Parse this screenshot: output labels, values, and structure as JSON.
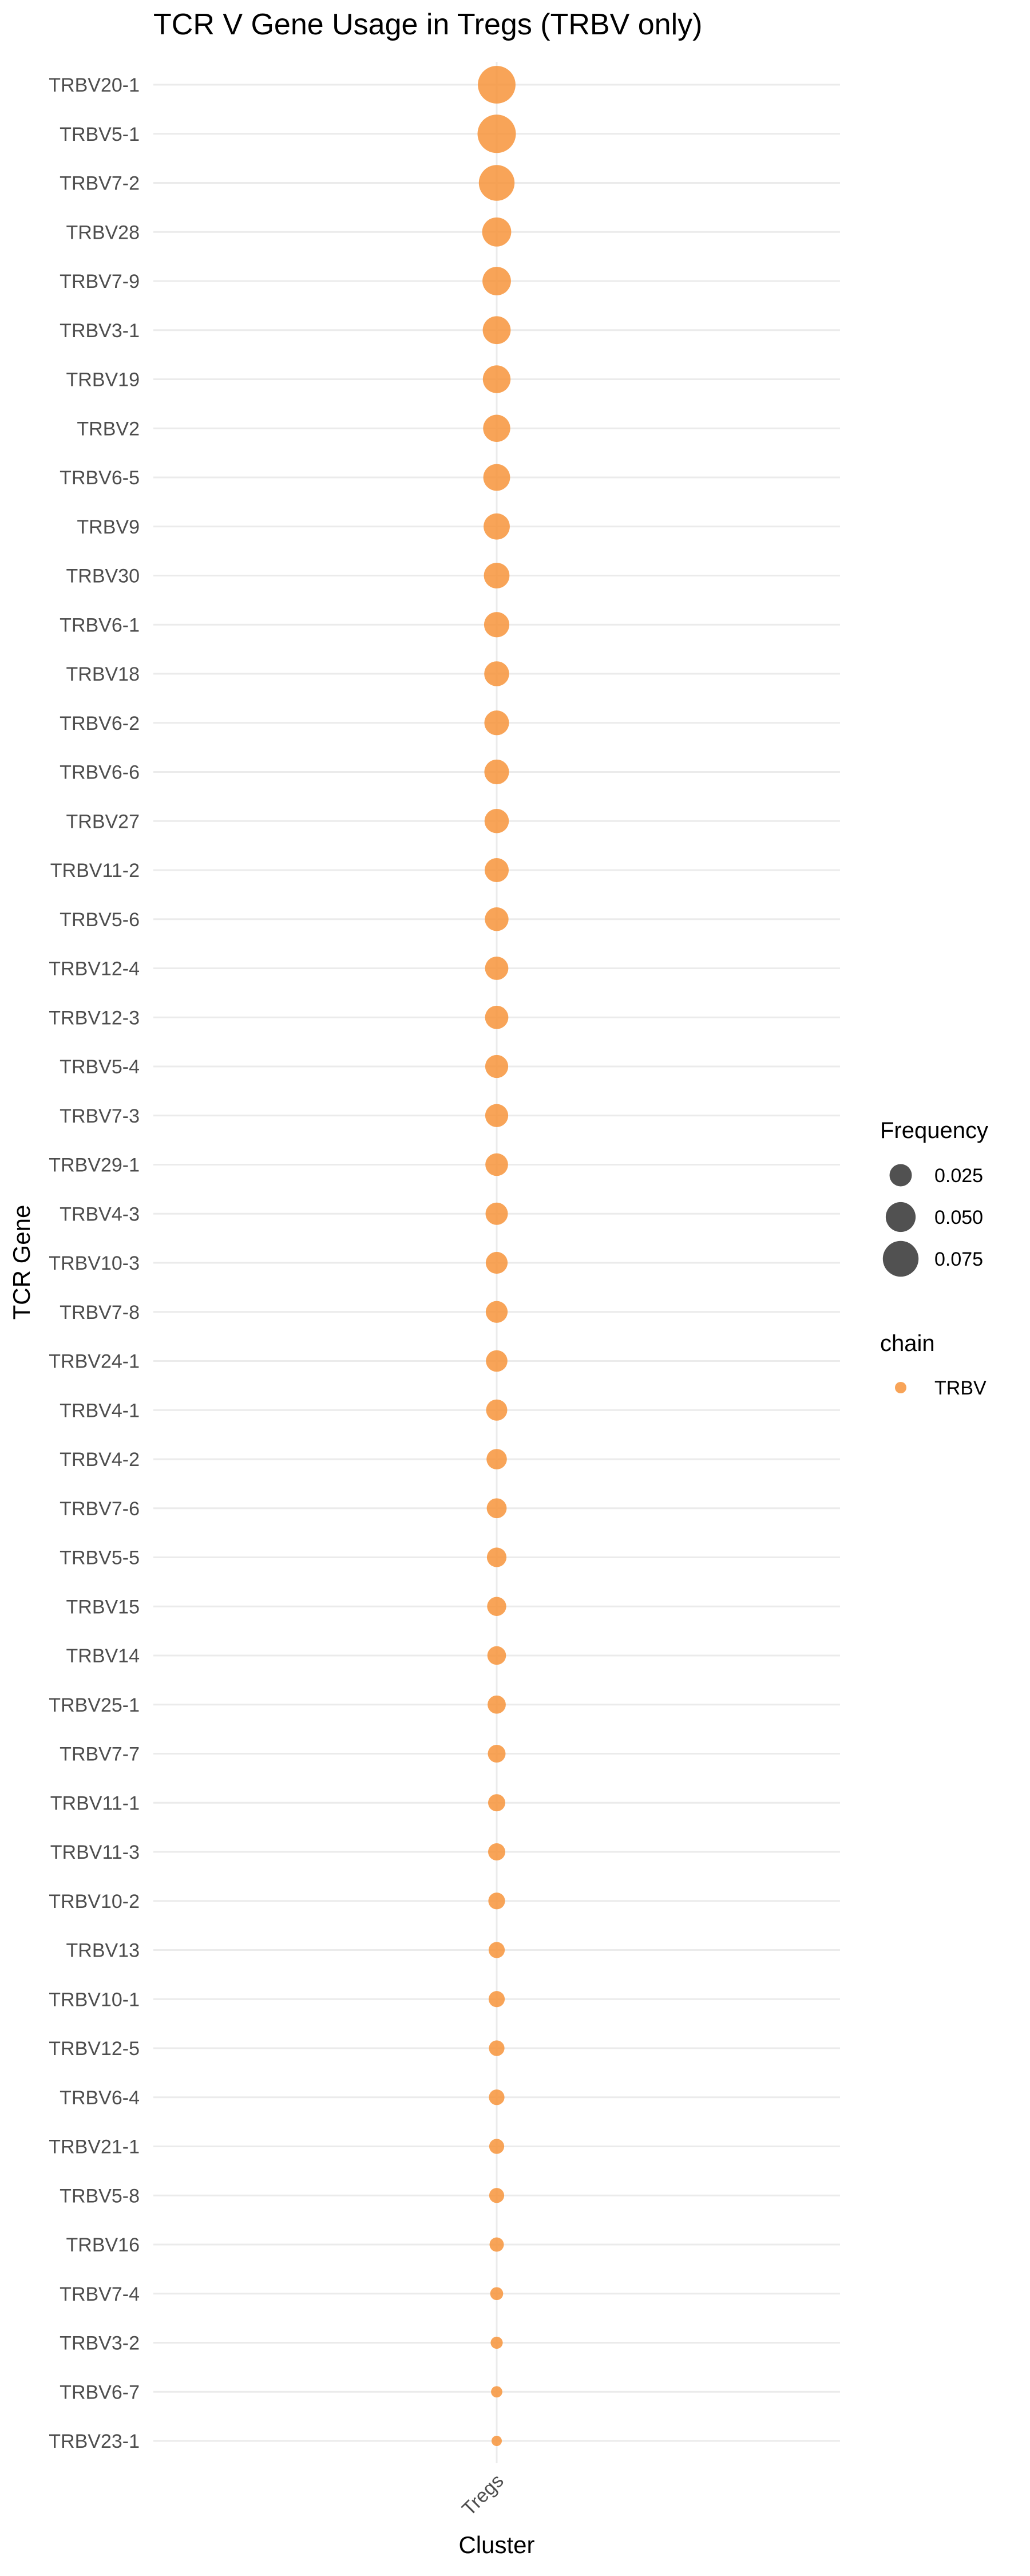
{
  "chart_data": {
    "type": "scatter",
    "title": "TCR V Gene Usage in Tregs (TRBV only)",
    "xlabel": "Cluster",
    "ylabel": "TCR Gene",
    "x_categories": [
      "Tregs"
    ],
    "grid": true,
    "legend_position": "right",
    "series": [
      {
        "name": "TRBV",
        "color": "#F7943B",
        "cluster": "Tregs",
        "genes": [
          "TRBV20-1",
          "TRBV5-1",
          "TRBV7-2",
          "TRBV28",
          "TRBV7-9",
          "TRBV3-1",
          "TRBV19",
          "TRBV2",
          "TRBV6-5",
          "TRBV9",
          "TRBV30",
          "TRBV6-1",
          "TRBV18",
          "TRBV6-2",
          "TRBV6-6",
          "TRBV27",
          "TRBV11-2",
          "TRBV5-6",
          "TRBV12-4",
          "TRBV12-3",
          "TRBV5-4",
          "TRBV7-3",
          "TRBV29-1",
          "TRBV4-3",
          "TRBV10-3",
          "TRBV7-8",
          "TRBV24-1",
          "TRBV4-1",
          "TRBV4-2",
          "TRBV7-6",
          "TRBV5-5",
          "TRBV15",
          "TRBV14",
          "TRBV25-1",
          "TRBV7-7",
          "TRBV11-1",
          "TRBV11-3",
          "TRBV10-2",
          "TRBV13",
          "TRBV10-1",
          "TRBV12-5",
          "TRBV6-4",
          "TRBV21-1",
          "TRBV5-8",
          "TRBV16",
          "TRBV7-4",
          "TRBV3-2",
          "TRBV6-7",
          "TRBV23-1"
        ],
        "frequency": [
          0.085,
          0.088,
          0.075,
          0.047,
          0.045,
          0.043,
          0.042,
          0.04,
          0.039,
          0.037,
          0.035,
          0.034,
          0.033,
          0.032,
          0.032,
          0.031,
          0.03,
          0.029,
          0.028,
          0.028,
          0.027,
          0.027,
          0.026,
          0.025,
          0.024,
          0.024,
          0.023,
          0.022,
          0.02,
          0.019,
          0.018,
          0.017,
          0.016,
          0.015,
          0.014,
          0.013,
          0.013,
          0.012,
          0.011,
          0.011,
          0.01,
          0.01,
          0.009,
          0.009,
          0.008,
          0.006,
          0.005,
          0.004,
          0.003
        ]
      }
    ],
    "size_legend": {
      "title": "Frequency",
      "breaks": [
        0.025,
        0.05,
        0.075
      ],
      "labels": [
        "0.025",
        "0.050",
        "0.075"
      ]
    },
    "color_legend": {
      "title": "chain",
      "entries": [
        "TRBV"
      ]
    }
  }
}
